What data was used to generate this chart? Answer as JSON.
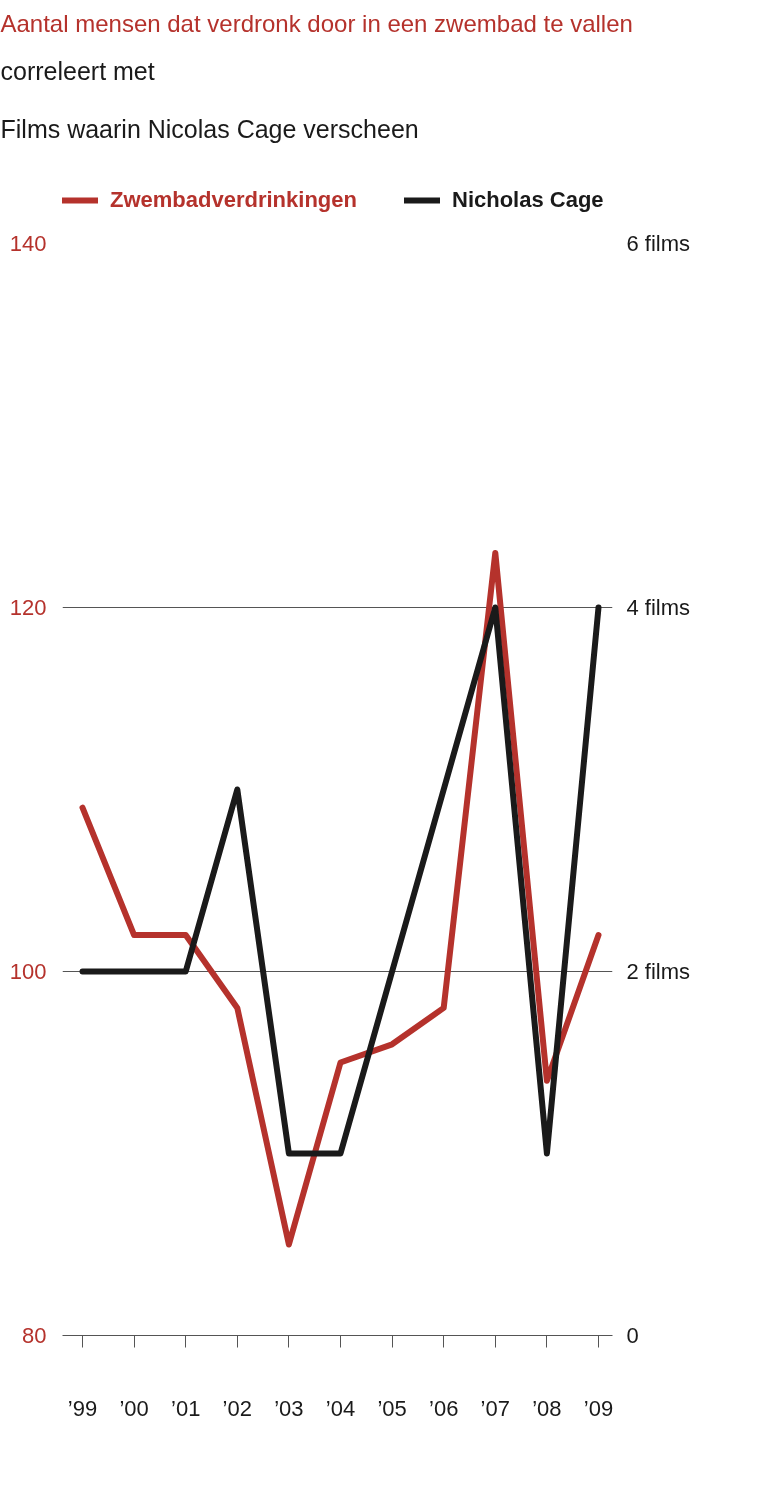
{
  "chart_data": {
    "type": "line",
    "title": "Aantal mensen dat verdronk door in een zwembad te vallen",
    "subtitle": "correleert met\nFilms waarin Nicolas Cage verscheen",
    "categories": [
      "’99",
      "’00",
      "’01",
      "’02",
      "’03",
      "’04",
      "’05",
      "’06",
      "’07",
      "’08",
      "’09"
    ],
    "series": [
      {
        "name": "Zwembadverdrinkingen",
        "color": "#b5322c",
        "values": [
          109,
          102,
          102,
          98,
          85,
          95,
          96,
          98,
          123,
          94,
          102
        ]
      },
      {
        "name": "Nicholas Cage",
        "color": "#1a1a1a",
        "axis": "y2",
        "values": [
          2,
          2,
          2,
          3,
          1,
          1,
          2,
          3,
          4,
          1,
          4
        ]
      }
    ],
    "ylim": [
      80,
      140
    ],
    "yticks": [
      80,
      100,
      120,
      140
    ],
    "y2lim": [
      0,
      6
    ],
    "y2ticks": [
      0,
      {
        "value": 2,
        "label": "2 films"
      },
      {
        "value": 4,
        "label": "4 films"
      },
      {
        "value": 6,
        "label": "6 films"
      }
    ],
    "grid": "y",
    "legend": "top",
    "line_style": "solid"
  }
}
